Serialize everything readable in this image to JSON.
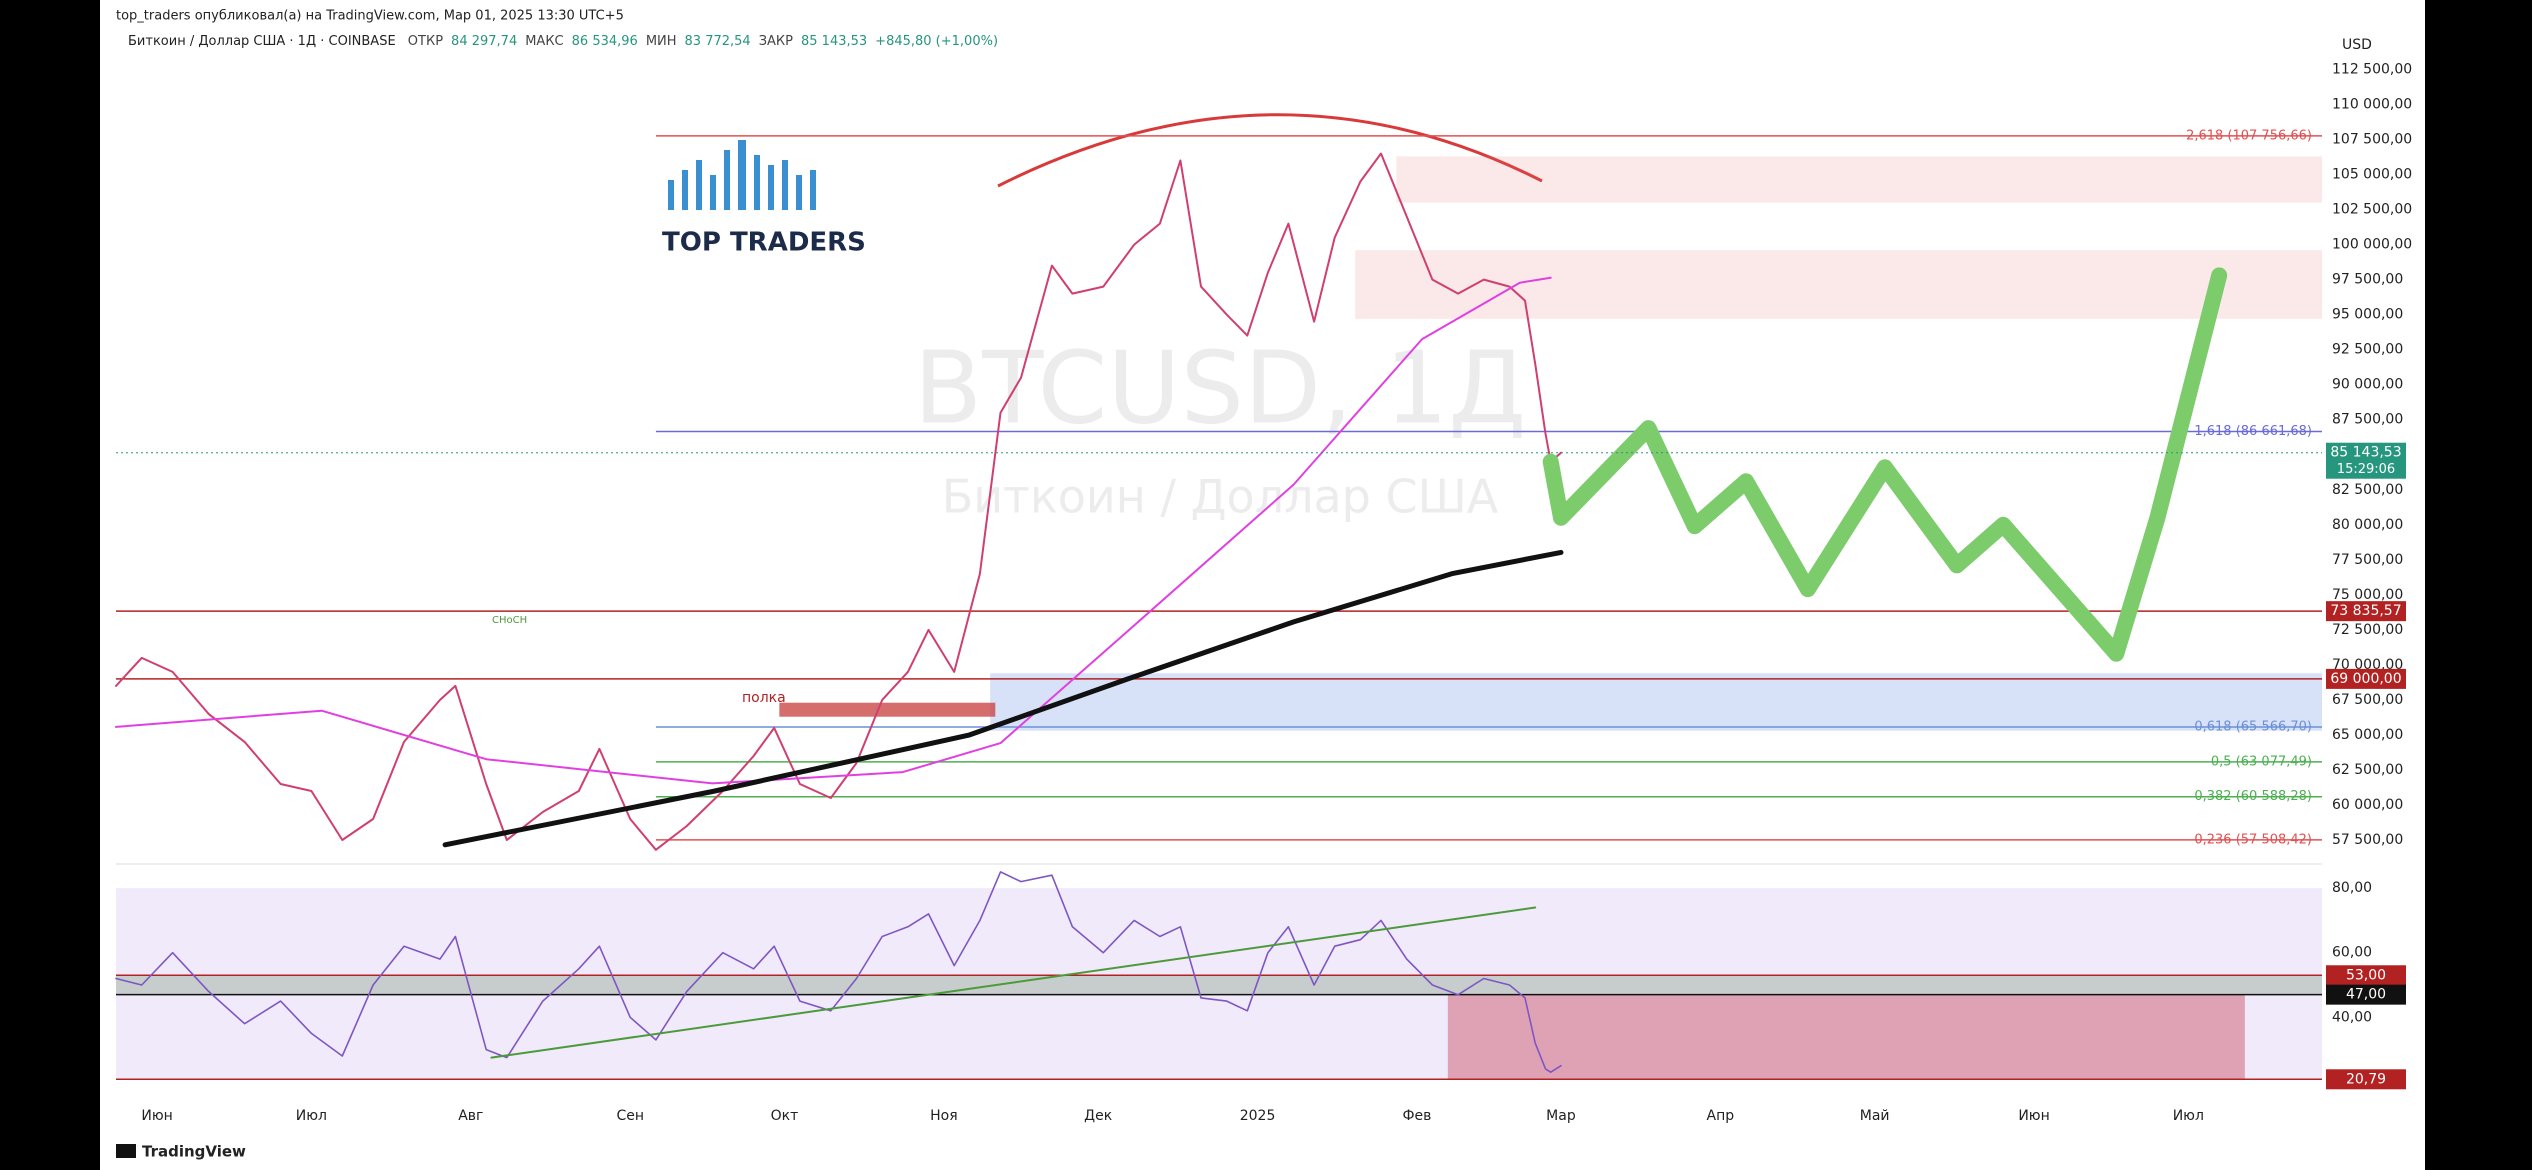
{
  "header": {
    "byline": "top_traders опубликовал(а) на TradingView.com, Мар 01, 2025 13:30 UTC+5",
    "symbol": "Биткоин / Доллар США · 1Д · COINBASE",
    "ohlc": [
      {
        "label": "ОТКР",
        "value": "84 297,74"
      },
      {
        "label": "МАКС",
        "value": "86 534,96"
      },
      {
        "label": "МИН",
        "value": "83 772,54"
      },
      {
        "label": "ЗАКР",
        "value": "85 143,53"
      }
    ],
    "change": "+845,80 (+1,00%)",
    "currency": "USD",
    "logo": "TOP TRADERS",
    "footer": "TradingView"
  },
  "chart_data": [
    {
      "type": "line",
      "watermark": [
        "BTCUSD, 1Д",
        "Биткоин / Доллар США"
      ],
      "annotations": [
        "полка",
        "CHoCH"
      ],
      "xlim": [
        -8,
        421
      ],
      "ylim": [
        56930,
        114030
      ],
      "yticks": [
        {
          "value": 57500,
          "label": "57 500,00"
        },
        {
          "value": 60000,
          "label": "60 000,00"
        },
        {
          "value": 62500,
          "label": "62 500,00"
        },
        {
          "value": 65000,
          "label": "65 000,00"
        },
        {
          "value": 67500,
          "label": "67 500,00"
        },
        {
          "value": 70000,
          "label": "70 000,00"
        },
        {
          "value": 72500,
          "label": "72 500,00"
        },
        {
          "value": 75000,
          "label": "75 000,00"
        },
        {
          "value": 77500,
          "label": "77 500,00"
        },
        {
          "value": 80000,
          "label": "80 000,00"
        },
        {
          "value": 82500,
          "label": "82 500,00"
        },
        {
          "value": 85000,
          "label": "85 000,00"
        },
        {
          "value": 87500,
          "label": "87 500,00"
        },
        {
          "value": 90000,
          "label": "90 000,00"
        },
        {
          "value": 92500,
          "label": "92 500,00"
        },
        {
          "value": 95000,
          "label": "95 000,00"
        },
        {
          "value": 97500,
          "label": "97 500,00"
        },
        {
          "value": 100000,
          "label": "100 000,00"
        },
        {
          "value": 102500,
          "label": "102 500,00"
        },
        {
          "value": 105000,
          "label": "105 000,00"
        },
        {
          "value": 107500,
          "label": "107 500,00"
        },
        {
          "value": 110000,
          "label": "110 000,00"
        },
        {
          "value": 112500,
          "label": "112 500,00"
        }
      ],
      "zones": [
        {
          "from": 103000,
          "to": 106300,
          "start": 241,
          "color": "rgba(232,110,110,0.16)"
        },
        {
          "from": 94700,
          "to": 99600,
          "start": 233,
          "color": "rgba(232,110,110,0.16)"
        },
        {
          "from": 65300,
          "to": 69400,
          "start": 162,
          "color": "rgba(110,150,235,0.28)"
        },
        {
          "from": 66300,
          "to": 67300,
          "start": 121,
          "end": 163,
          "color": "rgba(200,60,60,0.75)"
        }
      ],
      "series": [
        {
          "color": "#cf3f6f",
          "width": 2,
          "x": [
            -8,
            -3,
            3,
            10,
            17,
            24,
            30,
            36,
            42,
            48,
            55,
            58,
            64,
            68,
            75,
            82,
            86,
            92,
            97,
            103,
            110,
            116,
            120,
            125,
            131,
            136,
            141,
            146,
            150,
            155,
            160,
            164,
            168,
            174,
            178,
            184,
            190,
            195,
            199,
            203,
            208,
            212,
            216,
            220,
            225,
            229,
            234,
            238,
            243,
            248,
            253,
            258,
            263,
            266,
            268,
            270,
            271,
            273
          ],
          "values": [
            68500,
            70500,
            69500,
            66500,
            64500,
            61500,
            61000,
            57500,
            59000,
            64500,
            67500,
            68500,
            61500,
            57500,
            59500,
            61000,
            64000,
            59000,
            56800,
            58500,
            61000,
            63500,
            65500,
            61500,
            60500,
            63000,
            67500,
            69500,
            72500,
            69500,
            76500,
            88000,
            90500,
            98500,
            96500,
            97000,
            100000,
            101500,
            106000,
            97000,
            95000,
            93500,
            98000,
            101500,
            94500,
            100500,
            104500,
            106500,
            102000,
            97500,
            96500,
            97500,
            97000,
            96000,
            91500,
            86500,
            84500,
            85143.53
          ]
        },
        {
          "color": "#e040e0",
          "width": 2,
          "x": [
            -8,
            32,
            64,
            108,
            145,
            164,
            189,
            221,
            246,
            265,
            271
          ],
          "values": [
            65570,
            66730,
            63270,
            61540,
            62350,
            64420,
            72490,
            82870,
            93250,
            97280,
            97630
          ]
        },
        {
          "color": "#111111",
          "width": 5,
          "x": [
            56,
            108,
            158,
            189,
            221,
            252,
            273
          ],
          "values": [
            57160,
            60960,
            65000,
            69030,
            73070,
            76530,
            78030
          ]
        },
        {
          "color": "#7ccc6c",
          "width": 16,
          "x": [
            271,
            273,
            290,
            299,
            309,
            321,
            336,
            350,
            359,
            381,
            389,
            401
          ],
          "values": [
            84500,
            80500,
            86900,
            79900,
            83100,
            75400,
            84100,
            77100,
            80000,
            70800,
            80500,
            97800
          ]
        }
      ],
      "levels": [
        {
          "value": 107756.66,
          "label": "2,618 (107 756,66)",
          "color": "#e05050",
          "style": "fib",
          "start": 97
        },
        {
          "value": 86661.68,
          "label": "1,618 (86 661,68)",
          "color": "#6a6ad8",
          "style": "fib",
          "start": 97
        },
        {
          "value": 73835.57,
          "label": "73 835,57",
          "color": "#b22222",
          "style": "badge"
        },
        {
          "value": 69000,
          "label": "69 000,00",
          "color": "#b22222",
          "style": "badge"
        },
        {
          "value": 65566.7,
          "label": "0,618 (65 566,70)",
          "color": "#6a8fd8",
          "style": "fib",
          "start": 97
        },
        {
          "value": 63077.49,
          "label": "0,5 (63 077,49)",
          "color": "#4caf50",
          "style": "fib",
          "start": 97
        },
        {
          "value": 60588.28,
          "label": "0,382 (60 588,28)",
          "color": "#4caf50",
          "style": "fib",
          "start": 97
        },
        {
          "value": 57508.42,
          "label": "0,236 (57 508,42)",
          "color": "#e05050",
          "style": "fib",
          "start": 97
        }
      ],
      "last_price": {
        "value": 85143.53,
        "label": "85 143,53",
        "countdown": "15:29:06",
        "color": "#26967e"
      }
    },
    {
      "type": "line",
      "xlim": [
        -8,
        421
      ],
      "ylim": [
        15,
        82.5
      ],
      "yticks": [
        {
          "value": 80,
          "label": "80,00"
        },
        {
          "value": 60,
          "label": "60,00"
        },
        {
          "value": 40,
          "label": "40,00"
        }
      ],
      "xticks": [
        {
          "value": 0,
          "label": "Июн"
        },
        {
          "value": 30,
          "label": "Июл"
        },
        {
          "value": 61,
          "label": "Авг"
        },
        {
          "value": 92,
          "label": "Сен"
        },
        {
          "value": 122,
          "label": "Окт"
        },
        {
          "value": 153,
          "label": "Ноя"
        },
        {
          "value": 183,
          "label": "Дек"
        },
        {
          "value": 214,
          "label": "2025"
        },
        {
          "value": 245,
          "label": "Фев"
        },
        {
          "value": 273,
          "label": "Мар"
        },
        {
          "value": 304,
          "label": "Апр"
        },
        {
          "value": 334,
          "label": "Май"
        },
        {
          "value": 365,
          "label": "Июн"
        },
        {
          "value": 395,
          "label": "Июл"
        }
      ],
      "zones": [
        {
          "from": 20.79,
          "to": 80,
          "color": "rgba(200,170,240,0.25)"
        },
        {
          "from": 47,
          "to": 53,
          "color": "rgba(120,150,120,0.35)"
        },
        {
          "from": 20.79,
          "to": 47,
          "start": 251,
          "end": 406,
          "color": "rgba(205,90,110,0.5)"
        }
      ],
      "series": [
        {
          "color": "#7e57c2",
          "width": 1.6,
          "x": [
            -8,
            -3,
            3,
            10,
            17,
            24,
            30,
            36,
            42,
            48,
            55,
            58,
            64,
            68,
            75,
            82,
            86,
            92,
            97,
            103,
            110,
            116,
            120,
            125,
            131,
            136,
            141,
            146,
            150,
            155,
            160,
            164,
            168,
            174,
            178,
            184,
            190,
            195,
            199,
            203,
            208,
            212,
            216,
            220,
            225,
            229,
            234,
            238,
            243,
            248,
            253,
            258,
            263,
            266,
            268,
            270,
            271,
            273
          ],
          "values": [
            52,
            50,
            60,
            48,
            38,
            45,
            35,
            28,
            50,
            62,
            58,
            65,
            30,
            27.5,
            45,
            55,
            62,
            40,
            33,
            48,
            60,
            55,
            62,
            45,
            42,
            52,
            65,
            68,
            72,
            56,
            70,
            85,
            82,
            84,
            68,
            60,
            70,
            65,
            68,
            46,
            45,
            42,
            60,
            68,
            50,
            62,
            64,
            70,
            58,
            50,
            47,
            52,
            50,
            46,
            32,
            24,
            23,
            25
          ]
        },
        {
          "color": "#4c9a3a",
          "width": 2,
          "x": [
            65,
            268
          ],
          "values": [
            27.5,
            74
          ]
        }
      ],
      "levels": [
        {
          "value": 53,
          "label": "53,00",
          "color": "#b22222",
          "style": "badge"
        },
        {
          "value": 47,
          "label": "47,00",
          "color": "#111111",
          "style": "badge"
        },
        {
          "value": 20.79,
          "label": "20,79",
          "color": "#b22222",
          "style": "badge"
        }
      ]
    }
  ]
}
